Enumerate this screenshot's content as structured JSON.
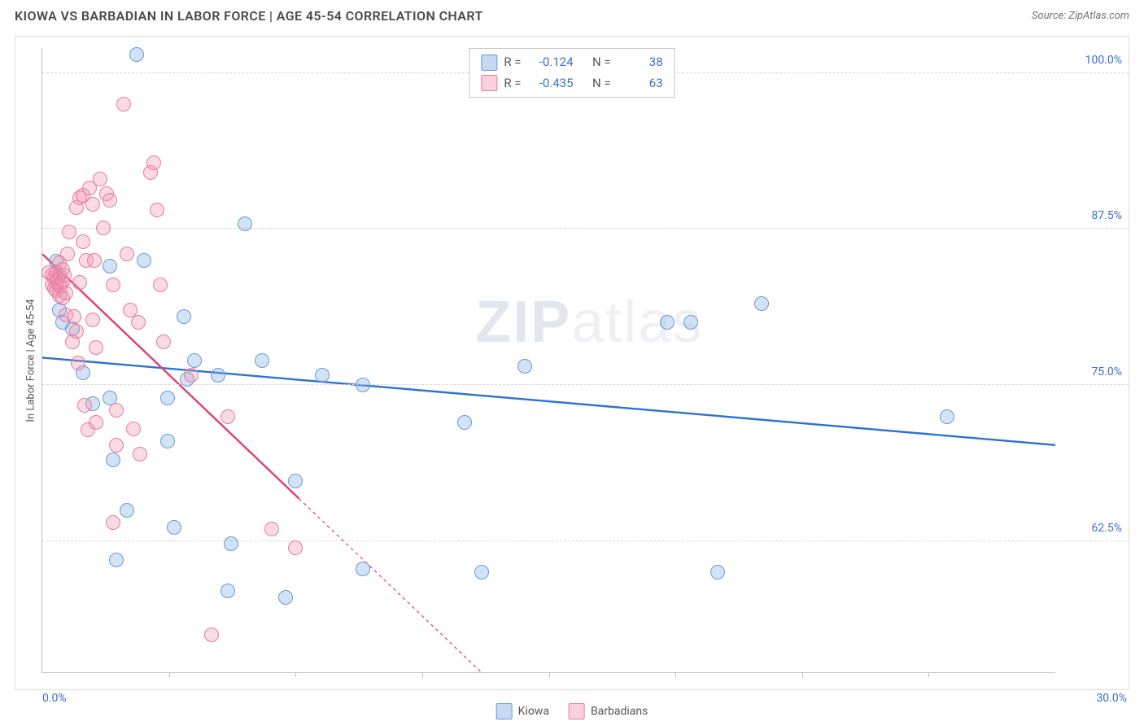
{
  "header": {
    "title": "KIOWA VS BARBADIAN IN LABOR FORCE | AGE 45-54 CORRELATION CHART",
    "source": "Source: ZipAtlas.com"
  },
  "watermark": {
    "bold": "ZIP",
    "rest": "atlas"
  },
  "chart": {
    "type": "scatter",
    "ylabel": "In Labor Force | Age 45-54",
    "xlim": [
      0.0,
      30.0
    ],
    "ylim": [
      52.0,
      102.0
    ],
    "xlim_labels": {
      "min": "0.0%",
      "max": "30.0%"
    },
    "ytick_values": [
      62.5,
      75.0,
      87.5,
      100.0
    ],
    "ytick_labels": [
      "62.5%",
      "75.0%",
      "87.5%",
      "100.0%"
    ],
    "xtick_values": [
      3.75,
      7.5,
      11.25,
      15.0,
      18.75,
      22.5,
      26.25
    ],
    "background_color": "#ffffff",
    "grid_color": "#d8d8d8",
    "axis_color": "#c0c0c0",
    "tick_label_color": "#3b6fc9",
    "marker_radius": 9,
    "series": [
      {
        "name": "Kiowa",
        "color_fill": "rgba(129,174,229,0.35)",
        "color_stroke": "#6a99d6",
        "r_label": "R =",
        "r_value": "-0.124",
        "n_label": "N =",
        "n_value": "38",
        "trend": {
          "x1": 0.0,
          "y1": 77.2,
          "x2": 30.0,
          "y2": 70.2,
          "dash_from_x": 30.0,
          "color": "#2d72d2",
          "width": 2.4
        },
        "points": [
          [
            0.4,
            84.9
          ],
          [
            0.5,
            81.0
          ],
          [
            0.5,
            83.8
          ],
          [
            0.6,
            80.0
          ],
          [
            0.9,
            79.5
          ],
          [
            2.8,
            101.5
          ],
          [
            3.0,
            85.0
          ],
          [
            1.2,
            76.0
          ],
          [
            1.5,
            73.5
          ],
          [
            2.0,
            84.5
          ],
          [
            2.0,
            74.0
          ],
          [
            2.1,
            69.0
          ],
          [
            2.2,
            61.0
          ],
          [
            2.5,
            65.0
          ],
          [
            3.7,
            74.0
          ],
          [
            3.7,
            70.5
          ],
          [
            3.9,
            63.6
          ],
          [
            4.2,
            80.5
          ],
          [
            4.3,
            75.5
          ],
          [
            4.5,
            77.0
          ],
          [
            5.2,
            75.8
          ],
          [
            5.6,
            62.3
          ],
          [
            5.5,
            58.5
          ],
          [
            6.0,
            87.9
          ],
          [
            6.5,
            77.0
          ],
          [
            7.2,
            58.0
          ],
          [
            7.5,
            67.3
          ],
          [
            9.5,
            60.3
          ],
          [
            8.3,
            75.8
          ],
          [
            9.5,
            75.0
          ],
          [
            13.0,
            60.0
          ],
          [
            12.5,
            72.0
          ],
          [
            14.3,
            76.5
          ],
          [
            21.3,
            81.5
          ],
          [
            18.5,
            80.0
          ],
          [
            20.0,
            60.0
          ],
          [
            26.8,
            72.5
          ],
          [
            19.2,
            80.0
          ]
        ]
      },
      {
        "name": "Barbadians",
        "color_fill": "rgba(242,150,175,0.35)",
        "color_stroke": "#e77ba0",
        "r_label": "R =",
        "r_value": "-0.435",
        "n_label": "N =",
        "n_value": "63",
        "trend": {
          "x1": 0.0,
          "y1": 85.5,
          "x2": 13.0,
          "y2": 52.0,
          "dash_from_x": 7.6,
          "color": "#e13d73",
          "width": 2.4
        },
        "points": [
          [
            0.2,
            84.0
          ],
          [
            0.3,
            83.8
          ],
          [
            0.3,
            83.0
          ],
          [
            0.35,
            83.6
          ],
          [
            0.35,
            82.8
          ],
          [
            0.4,
            84.1
          ],
          [
            0.4,
            83.2
          ],
          [
            0.4,
            82.6
          ],
          [
            0.45,
            83.5
          ],
          [
            0.5,
            83.0
          ],
          [
            0.5,
            82.2
          ],
          [
            0.5,
            84.8
          ],
          [
            0.55,
            82.9
          ],
          [
            0.6,
            83.3
          ],
          [
            0.6,
            82.0
          ],
          [
            0.6,
            84.3
          ],
          [
            0.65,
            83.8
          ],
          [
            0.7,
            82.4
          ],
          [
            0.7,
            80.6
          ],
          [
            0.75,
            85.5
          ],
          [
            0.8,
            87.3
          ],
          [
            0.9,
            78.5
          ],
          [
            0.95,
            80.5
          ],
          [
            1.0,
            89.2
          ],
          [
            1.0,
            79.3
          ],
          [
            1.05,
            76.8
          ],
          [
            1.1,
            83.2
          ],
          [
            1.1,
            90.0
          ],
          [
            1.2,
            90.2
          ],
          [
            1.2,
            86.5
          ],
          [
            1.25,
            73.4
          ],
          [
            1.3,
            85.0
          ],
          [
            1.35,
            71.4
          ],
          [
            1.4,
            90.8
          ],
          [
            1.5,
            89.5
          ],
          [
            1.5,
            80.2
          ],
          [
            1.55,
            85.0
          ],
          [
            1.6,
            78.0
          ],
          [
            1.6,
            72.0
          ],
          [
            1.7,
            91.5
          ],
          [
            1.8,
            87.6
          ],
          [
            1.9,
            90.3
          ],
          [
            2.0,
            89.8
          ],
          [
            2.1,
            83.0
          ],
          [
            2.1,
            64.0
          ],
          [
            2.2,
            70.2
          ],
          [
            2.2,
            73.0
          ],
          [
            2.4,
            97.5
          ],
          [
            2.5,
            85.5
          ],
          [
            2.6,
            81.0
          ],
          [
            2.7,
            71.5
          ],
          [
            2.85,
            80.0
          ],
          [
            2.9,
            69.5
          ],
          [
            3.2,
            92.0
          ],
          [
            3.3,
            92.8
          ],
          [
            3.4,
            89.0
          ],
          [
            3.5,
            83.0
          ],
          [
            3.6,
            78.5
          ],
          [
            4.4,
            75.8
          ],
          [
            5.0,
            55.0
          ],
          [
            5.5,
            72.5
          ],
          [
            6.8,
            63.5
          ],
          [
            7.5,
            62.0
          ]
        ]
      }
    ]
  },
  "bottom_legend": [
    {
      "swatch": "sw1",
      "label": "Kiowa"
    },
    {
      "swatch": "sw2",
      "label": "Barbadians"
    }
  ]
}
